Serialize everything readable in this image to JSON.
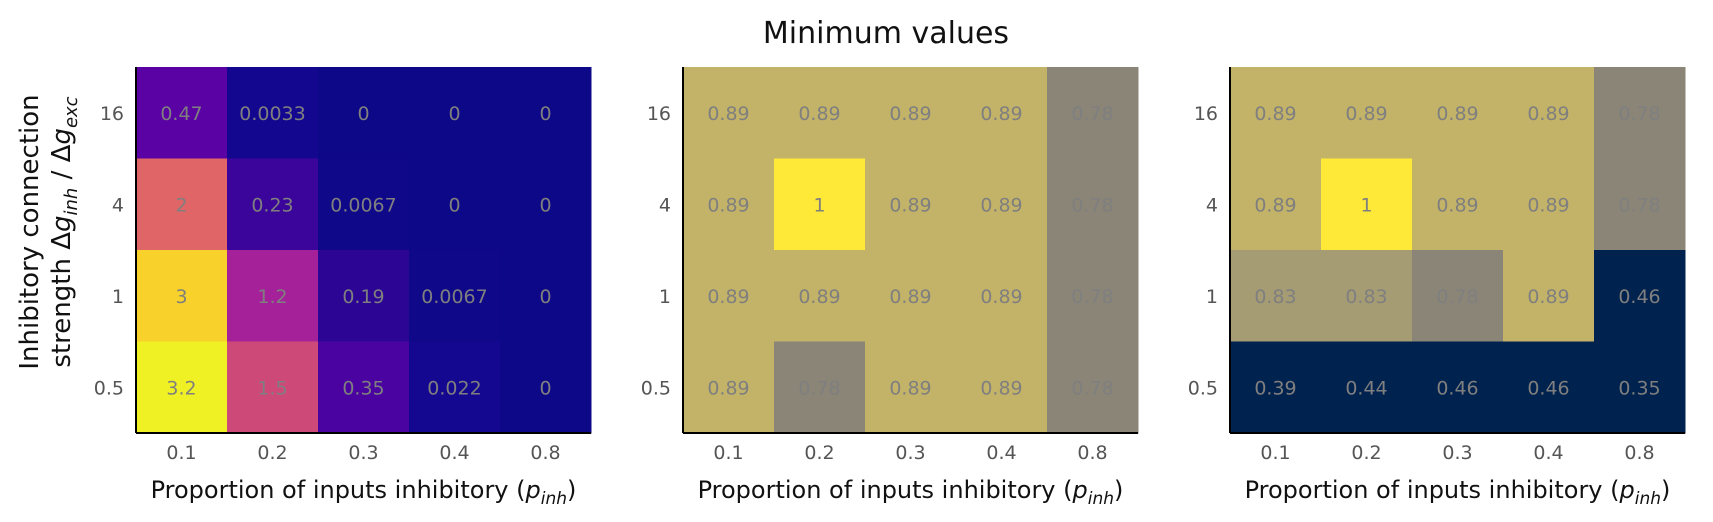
{
  "title": "Minimum values",
  "ylabel_line1": "Inhibitory connection",
  "ylabel_line2_text": "strength",
  "ylabel_math": {
    "delta": "Δ",
    "g": "g",
    "inh": "inh",
    "slash": " / ",
    "exc": "exc"
  },
  "chart_data": [
    {
      "type": "heatmap",
      "colormap": "plasma",
      "x_categories": [
        "0.1",
        "0.2",
        "0.3",
        "0.4",
        "0.8"
      ],
      "y_categories": [
        "16",
        "4",
        "1",
        "0.5"
      ],
      "xlabel_text": "Proportion of inputs inhibitory (",
      "xlabel_math": {
        "p": "p",
        "sub": "inh"
      },
      "xlabel_close": ")",
      "values": [
        [
          0.47,
          0.0033,
          0,
          0,
          0
        ],
        [
          2,
          0.23,
          0.0067,
          0,
          0
        ],
        [
          3,
          1.2,
          0.19,
          0.0067,
          0
        ],
        [
          3.2,
          1.5,
          0.35,
          0.022,
          0
        ]
      ],
      "labels": [
        [
          "0.47",
          "0.0033",
          "0",
          "0",
          "0"
        ],
        [
          "2",
          "0.23",
          "0.0067",
          "0",
          "0"
        ],
        [
          "3",
          "1.2",
          "0.19",
          "0.0067",
          "0"
        ],
        [
          "3.2",
          "1.5",
          "0.35",
          "0.022",
          "0"
        ]
      ],
      "colors": [
        [
          "#5a02a4",
          "#14078f",
          "#0d0887",
          "#0d0887",
          "#0d0887"
        ],
        [
          "#e06566",
          "#3b049a",
          "#0f0888",
          "#0d0887",
          "#0d0887"
        ],
        [
          "#f8d22b",
          "#a52199",
          "#2c0594",
          "#0f0888",
          "#0d0887"
        ],
        [
          "#f0f125",
          "#cd4a78",
          "#4a03a1",
          "#150890",
          "#0d0887"
        ]
      ]
    },
    {
      "type": "heatmap",
      "colormap": "cividis",
      "x_categories": [
        "0.1",
        "0.2",
        "0.3",
        "0.4",
        "0.8"
      ],
      "y_categories": [
        "16",
        "4",
        "1",
        "0.5"
      ],
      "xlabel_text": "Proportion of inputs inhibitory (",
      "xlabel_math": {
        "p": "p",
        "sub": "inh"
      },
      "xlabel_close": ")",
      "values": [
        [
          0.89,
          0.89,
          0.89,
          0.89,
          0.78
        ],
        [
          0.89,
          1,
          0.89,
          0.89,
          0.78
        ],
        [
          0.89,
          0.89,
          0.89,
          0.89,
          0.78
        ],
        [
          0.89,
          0.78,
          0.89,
          0.89,
          0.78
        ]
      ],
      "labels": [
        [
          "0.89",
          "0.89",
          "0.89",
          "0.89",
          "0.78"
        ],
        [
          "0.89",
          "1",
          "0.89",
          "0.89",
          "0.78"
        ],
        [
          "0.89",
          "0.89",
          "0.89",
          "0.89",
          "0.78"
        ],
        [
          "0.89",
          "0.78",
          "0.89",
          "0.89",
          "0.78"
        ]
      ],
      "colors": [
        [
          "#c3b369",
          "#c3b369",
          "#c3b369",
          "#c3b369",
          "#8a8577"
        ],
        [
          "#c3b369",
          "#fee838",
          "#c3b369",
          "#c3b369",
          "#8a8577"
        ],
        [
          "#c3b369",
          "#c3b369",
          "#c3b369",
          "#c3b369",
          "#8a8577"
        ],
        [
          "#c3b369",
          "#8a8577",
          "#c3b369",
          "#c3b369",
          "#8a8577"
        ]
      ]
    },
    {
      "type": "heatmap",
      "colormap": "cividis",
      "x_categories": [
        "0.1",
        "0.2",
        "0.3",
        "0.4",
        "0.8"
      ],
      "y_categories": [
        "16",
        "4",
        "1",
        "0.5"
      ],
      "xlabel_text": "Proportion of inputs inhibitory (",
      "xlabel_math": {
        "p": "p",
        "sub": "inh"
      },
      "xlabel_close": ")",
      "values": [
        [
          0.89,
          0.89,
          0.89,
          0.89,
          0.78
        ],
        [
          0.89,
          1,
          0.89,
          0.89,
          0.78
        ],
        [
          0.83,
          0.83,
          0.78,
          0.89,
          0.46
        ],
        [
          0.39,
          0.44,
          0.46,
          0.46,
          0.35
        ]
      ],
      "labels": [
        [
          "0.89",
          "0.89",
          "0.89",
          "0.89",
          "0.78"
        ],
        [
          "0.89",
          "1",
          "0.89",
          "0.89",
          "0.78"
        ],
        [
          "0.83",
          "0.83",
          "0.78",
          "0.89",
          "0.46"
        ],
        [
          "0.39",
          "0.44",
          "0.46",
          "0.46",
          "0.35"
        ]
      ],
      "colors": [
        [
          "#c3b369",
          "#c3b369",
          "#c3b369",
          "#c3b369",
          "#8a8577"
        ],
        [
          "#c3b369",
          "#fee838",
          "#c3b369",
          "#c3b369",
          "#8a8577"
        ],
        [
          "#a59c74",
          "#a59c74",
          "#8a8577",
          "#c3b369",
          "#00224e"
        ],
        [
          "#00224e",
          "#00224e",
          "#00224e",
          "#00224e",
          "#00224e"
        ]
      ]
    }
  ]
}
